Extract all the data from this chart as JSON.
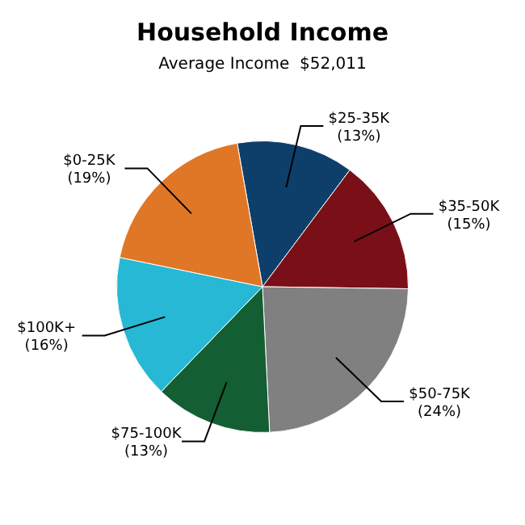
{
  "chart_data": {
    "type": "pie",
    "title": "Household Income",
    "subtitle": "Average Income  $52,011",
    "categories": [
      "$25-35K",
      "$35-50K",
      "$50-75K",
      "$75-100K",
      "$100K+",
      "$0-25K"
    ],
    "values": [
      13,
      15,
      24,
      13,
      16,
      19
    ],
    "value_labels": [
      "(13%)",
      "(15%)",
      "(24%)",
      "(13%)",
      "(16%)",
      "(19%)"
    ],
    "colors": [
      "#0e3f6b",
      "#7a1017",
      "#808080",
      "#145e33",
      "#26b8d4",
      "#e07726"
    ],
    "legend": false
  }
}
